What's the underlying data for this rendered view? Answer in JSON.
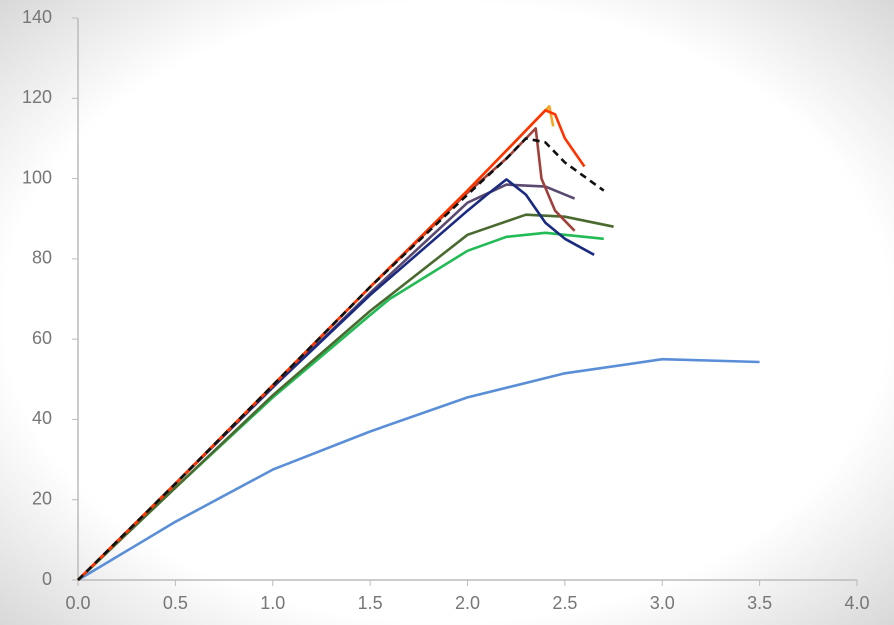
{
  "chart_data": {
    "type": "line",
    "xlim": [
      0,
      4
    ],
    "ylim": [
      0,
      140
    ],
    "xticks": [
      {
        "value": 0,
        "label": "0.0"
      },
      0.5,
      {
        "value": 1,
        "label": "1.0"
      },
      1.5,
      {
        "value": 2,
        "label": "2.0"
      },
      2.5,
      {
        "value": 3,
        "label": "3.0"
      },
      3.5,
      {
        "value": 4,
        "label": "4.0"
      }
    ],
    "yticks": [
      0,
      20,
      40,
      60,
      80,
      100,
      120,
      140
    ],
    "series": [
      {
        "color": "#5a8fd8",
        "x": [
          0,
          0.5,
          1,
          1.5,
          2,
          2.5,
          3,
          3.5
        ],
        "values": [
          0,
          14.5,
          27.5,
          37,
          45.5,
          51.5,
          55,
          54.3
        ]
      },
      {
        "color": "#22bb55",
        "x": [
          0,
          0.5,
          1,
          1.5,
          1.6,
          2,
          2.2,
          2.4,
          2.7
        ],
        "values": [
          0,
          23,
          45.5,
          66,
          70,
          82,
          85.5,
          86.5,
          85
        ]
      },
      {
        "color": "#4a6a30",
        "x": [
          0,
          0.5,
          1,
          1.5,
          2,
          2.3,
          2.5,
          2.75
        ],
        "values": [
          0,
          23,
          46,
          67,
          86,
          91,
          90.5,
          88
        ]
      },
      {
        "color": "#5a4a70",
        "x": [
          0,
          0.5,
          1,
          1.5,
          2,
          2.2,
          2.4,
          2.55
        ],
        "values": [
          0,
          24,
          48,
          71.5,
          94,
          98.5,
          98,
          95
        ]
      },
      {
        "color": "#1a2a80",
        "x": [
          0,
          0.5,
          1,
          1.5,
          2,
          2.1,
          2.2,
          2.3,
          2.4,
          2.5,
          2.65
        ],
        "values": [
          0,
          24,
          48,
          71,
          92,
          96,
          99.8,
          96,
          89,
          85,
          81
        ]
      },
      {
        "color": "#a0403a",
        "x": [
          0,
          0.5,
          1,
          1.5,
          2,
          2.2,
          2.35,
          2.38,
          2.45,
          2.55
        ],
        "values": [
          0,
          24,
          48.5,
          73,
          96.5,
          105,
          112.5,
          100,
          92,
          87
        ]
      },
      {
        "color": "#f5a623",
        "x": [
          0,
          0.5,
          1,
          1.5,
          2,
          2.2,
          2.42,
          2.44
        ],
        "values": [
          0,
          24,
          48.5,
          73,
          97,
          107,
          118,
          113
        ]
      },
      {
        "color": "#ff3300",
        "x": [
          0,
          0.5,
          1,
          1.5,
          2,
          2.2,
          2.4,
          2.45,
          2.5,
          2.6
        ],
        "values": [
          0,
          24,
          48.5,
          73,
          97,
          107,
          117,
          116,
          110,
          103
        ]
      },
      {
        "color": "#111111",
        "dashed": true,
        "x": [
          0,
          0.5,
          1,
          1.5,
          2,
          2.2,
          2.3,
          2.4,
          2.5,
          2.7
        ],
        "values": [
          0,
          24,
          48.5,
          73,
          96,
          105,
          110,
          109,
          104,
          97
        ]
      }
    ]
  }
}
